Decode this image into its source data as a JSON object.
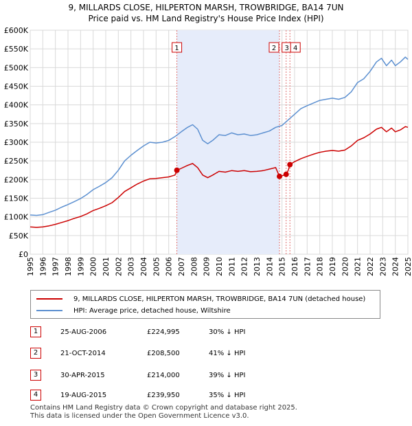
{
  "title": {
    "line1": "9, MILLARDS CLOSE, HILPERTON MARSH, TROWBRIDGE, BA14 7UN",
    "line2": "Price paid vs. HM Land Registry's House Price Index (HPI)"
  },
  "legend": {
    "property_label": "9, MILLARDS CLOSE, HILPERTON MARSH, TROWBRIDGE, BA14 7UN (detached house)",
    "hpi_label": "HPI: Average price, detached house, Wiltshire",
    "property_color": "#cc0000",
    "hpi_color": "#5b8fd0"
  },
  "transactions": [
    {
      "num": "1",
      "date": "25-AUG-2006",
      "price": "£224,995",
      "hpi_diff": "30% ↓ HPI"
    },
    {
      "num": "2",
      "date": "21-OCT-2014",
      "price": "£208,500",
      "hpi_diff": "41% ↓ HPI"
    },
    {
      "num": "3",
      "date": "30-APR-2015",
      "price": "£214,000",
      "hpi_diff": "39% ↓ HPI"
    },
    {
      "num": "4",
      "date": "19-AUG-2015",
      "price": "£239,950",
      "hpi_diff": "35% ↓ HPI"
    }
  ],
  "footer": {
    "line1": "Contains HM Land Registry data © Crown copyright and database right 2025.",
    "line2": "This data is licensed under the Open Government Licence v3.0."
  },
  "chart_data": {
    "type": "line",
    "title": "Price paid vs. HM Land Registry's House Price Index (HPI)",
    "xlabel": "",
    "ylabel": "",
    "xlim": [
      1995,
      2025
    ],
    "ylim": [
      0,
      600000
    ],
    "x_ticks": [
      "1995",
      "1996",
      "1997",
      "1998",
      "1999",
      "2000",
      "2001",
      "2002",
      "2003",
      "2004",
      "2005",
      "2006",
      "2007",
      "2008",
      "2009",
      "2010",
      "2011",
      "2012",
      "2013",
      "2014",
      "2015",
      "2016",
      "2017",
      "2018",
      "2019",
      "2020",
      "2021",
      "2022",
      "2023",
      "2024",
      "2025"
    ],
    "y_ticks": [
      {
        "value": 0,
        "label": "£0"
      },
      {
        "value": 50000,
        "label": "£50K"
      },
      {
        "value": 100000,
        "label": "£100K"
      },
      {
        "value": 150000,
        "label": "£150K"
      },
      {
        "value": 200000,
        "label": "£200K"
      },
      {
        "value": 250000,
        "label": "£250K"
      },
      {
        "value": 300000,
        "label": "£300K"
      },
      {
        "value": 350000,
        "label": "£350K"
      },
      {
        "value": 400000,
        "label": "£400K"
      },
      {
        "value": 450000,
        "label": "£450K"
      },
      {
        "value": 500000,
        "label": "£500K"
      },
      {
        "value": 550000,
        "label": "£550K"
      },
      {
        "value": 600000,
        "label": "£600K"
      }
    ],
    "grid": true,
    "shaded_region": {
      "x_start": 2006.65,
      "x_end": 2014.8
    },
    "markers": [
      {
        "label": "1",
        "x": 2006.65
      },
      {
        "label": "2",
        "x": 2014.8
      },
      {
        "label": "3",
        "x": 2015.33
      },
      {
        "label": "4",
        "x": 2015.63
      }
    ],
    "sales": [
      {
        "x": 2006.65,
        "y": 224995
      },
      {
        "x": 2014.8,
        "y": 208500
      },
      {
        "x": 2015.33,
        "y": 214000
      },
      {
        "x": 2015.63,
        "y": 239950
      }
    ],
    "series": [
      {
        "name": "HPI: Average price, detached house, Wiltshire",
        "color": "#5b8fd0",
        "x": [
          1995.0,
          1995.5,
          1996.0,
          1996.5,
          1997.0,
          1997.5,
          1998.0,
          1998.5,
          1999.0,
          1999.5,
          2000.0,
          2000.5,
          2001.0,
          2001.5,
          2002.0,
          2002.5,
          2003.0,
          2003.5,
          2004.0,
          2004.5,
          2005.0,
          2005.5,
          2006.0,
          2006.5,
          2007.0,
          2007.5,
          2007.9,
          2008.3,
          2008.7,
          2009.1,
          2009.5,
          2010.0,
          2010.5,
          2011.0,
          2011.5,
          2012.0,
          2012.5,
          2013.0,
          2013.5,
          2014.0,
          2014.5,
          2015.0,
          2015.5,
          2016.0,
          2016.5,
          2017.0,
          2017.5,
          2018.0,
          2018.5,
          2019.0,
          2019.5,
          2020.0,
          2020.5,
          2021.0,
          2021.5,
          2022.0,
          2022.5,
          2022.9,
          2023.3,
          2023.7,
          2024.0,
          2024.4,
          2024.8,
          2025.0
        ],
        "values": [
          105000,
          104000,
          106000,
          112000,
          118000,
          126000,
          133000,
          141000,
          149000,
          160000,
          173000,
          182000,
          192000,
          205000,
          225000,
          250000,
          265000,
          278000,
          290000,
          300000,
          298000,
          300000,
          305000,
          315000,
          328000,
          340000,
          347000,
          335000,
          305000,
          296000,
          305000,
          320000,
          318000,
          325000,
          320000,
          322000,
          318000,
          320000,
          325000,
          330000,
          340000,
          345000,
          360000,
          375000,
          390000,
          398000,
          405000,
          412000,
          415000,
          418000,
          415000,
          420000,
          435000,
          460000,
          470000,
          490000,
          515000,
          525000,
          505000,
          520000,
          505000,
          515000,
          528000,
          522000
        ]
      },
      {
        "name": "9, MILLARDS CLOSE, HILPERTON MARSH, TROWBRIDGE, BA14 7UN (detached house)",
        "color": "#cc0000",
        "x": [
          1995.0,
          1995.5,
          1996.0,
          1996.5,
          1997.0,
          1997.5,
          1998.0,
          1998.5,
          1999.0,
          1999.5,
          2000.0,
          2000.5,
          2001.0,
          2001.5,
          2002.0,
          2002.5,
          2003.0,
          2003.5,
          2004.0,
          2004.5,
          2005.0,
          2005.5,
          2006.0,
          2006.5,
          2006.65,
          2007.0,
          2007.5,
          2007.9,
          2008.3,
          2008.7,
          2009.1,
          2009.5,
          2010.0,
          2010.5,
          2011.0,
          2011.5,
          2012.0,
          2012.5,
          2013.0,
          2013.5,
          2014.0,
          2014.5,
          2014.8,
          2015.0,
          2015.33,
          2015.5,
          2015.63,
          2016.0,
          2016.5,
          2017.0,
          2017.5,
          2018.0,
          2018.5,
          2019.0,
          2019.5,
          2020.0,
          2020.5,
          2021.0,
          2021.5,
          2022.0,
          2022.5,
          2022.9,
          2023.3,
          2023.7,
          2024.0,
          2024.4,
          2024.8,
          2025.0
        ],
        "values": [
          73000,
          72000,
          73000,
          76000,
          80000,
          85000,
          90000,
          96000,
          101000,
          108000,
          117000,
          123000,
          130000,
          138000,
          152000,
          168000,
          178000,
          188000,
          196000,
          202000,
          203000,
          205000,
          207000,
          212000,
          224995,
          230000,
          238000,
          243000,
          232000,
          212000,
          205000,
          212000,
          222000,
          220000,
          224000,
          222000,
          224000,
          221000,
          222000,
          224000,
          228000,
          232000,
          208500,
          210000,
          214000,
          225000,
          239950,
          248000,
          256000,
          262000,
          268000,
          273000,
          276000,
          278000,
          276000,
          279000,
          290000,
          305000,
          312000,
          322000,
          335000,
          340000,
          328000,
          338000,
          328000,
          333000,
          342000,
          340000
        ]
      }
    ]
  }
}
